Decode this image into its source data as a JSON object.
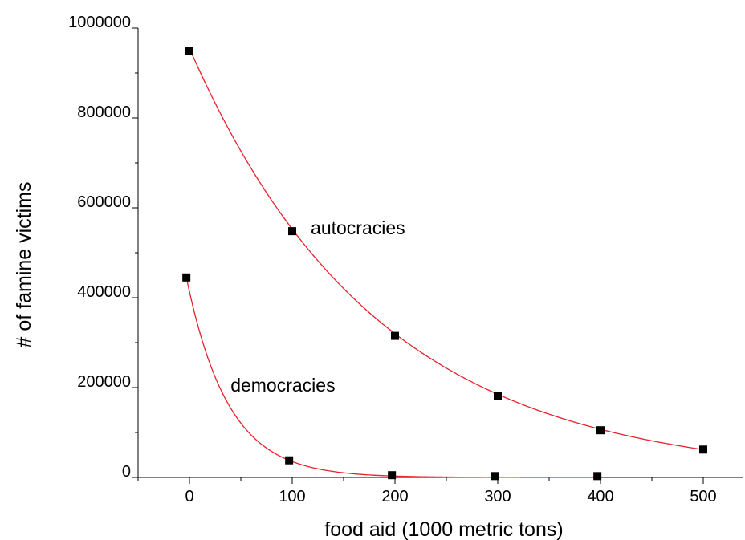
{
  "chart_data": {
    "type": "scatter",
    "title": "",
    "xlabel": "food aid (1000 metric tons)",
    "ylabel": "# of famine victims",
    "xlim": [
      -50,
      550
    ],
    "ylim": [
      0,
      1000000
    ],
    "x_ticks": [
      0,
      100,
      200,
      300,
      400,
      500
    ],
    "x_tick_labels": [
      "0",
      "100",
      "200",
      "300",
      "400",
      "500"
    ],
    "y_ticks": [
      0,
      200000,
      400000,
      600000,
      800000,
      1000000
    ],
    "y_tick_labels": [
      "0",
      "200000",
      "400000",
      "600000",
      "800000",
      "1000000"
    ],
    "grid": false,
    "fit_line_color": "#e8202a",
    "marker_color": "#000000",
    "series": [
      {
        "annotation": "autocracies",
        "x": [
          0,
          100,
          200,
          300,
          400,
          500
        ],
        "y": [
          950000,
          548000,
          315000,
          182000,
          105000,
          62000
        ],
        "fit": {
          "type": "exponential",
          "a": 955000,
          "b": 0.00547
        }
      },
      {
        "annotation": "democracies",
        "x": [
          -3,
          97,
          197,
          297,
          397
        ],
        "y": [
          445000,
          38000,
          5000,
          3000,
          3000
        ],
        "fit": {
          "type": "exponential",
          "a": 445000,
          "b": 0.0246
        }
      }
    ],
    "annotations": [
      {
        "text": "autocracies",
        "x": 118,
        "y": 555000
      },
      {
        "text": "democracies",
        "x": 40,
        "y": 205000
      }
    ]
  }
}
